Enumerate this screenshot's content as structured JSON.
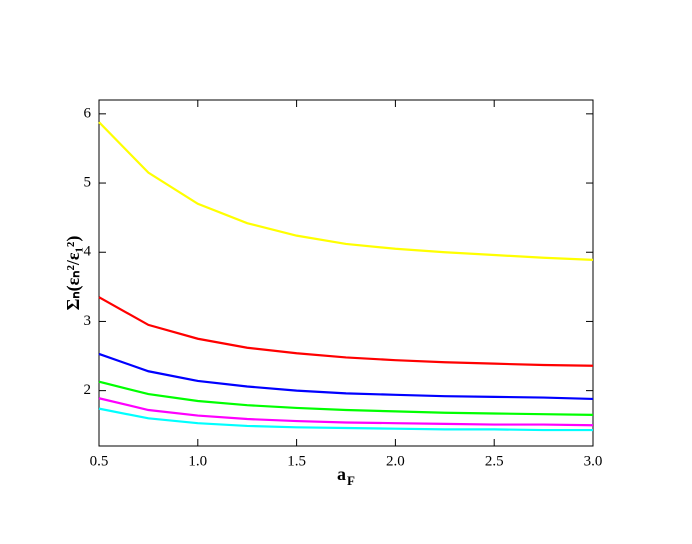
{
  "chart_data": {
    "type": "line",
    "xlabel": {
      "main": "a",
      "sub": "F"
    },
    "ylabel": "Σₙ(εₙ²/ε₁²)",
    "x": [
      0.5,
      0.75,
      1.0,
      1.25,
      1.5,
      1.75,
      2.0,
      2.25,
      2.5,
      2.75,
      3.0
    ],
    "series": [
      {
        "color": "#ffff00",
        "values": [
          5.88,
          5.15,
          4.7,
          4.42,
          4.24,
          4.12,
          4.05,
          4.0,
          3.96,
          3.92,
          3.89
        ]
      },
      {
        "color": "#ff0000",
        "values": [
          3.35,
          2.95,
          2.75,
          2.62,
          2.54,
          2.48,
          2.44,
          2.41,
          2.39,
          2.37,
          2.36
        ]
      },
      {
        "color": "#0000ff",
        "values": [
          2.53,
          2.28,
          2.14,
          2.06,
          2.0,
          1.96,
          1.94,
          1.92,
          1.91,
          1.9,
          1.88
        ]
      },
      {
        "color": "#00ff00",
        "values": [
          2.13,
          1.95,
          1.85,
          1.79,
          1.75,
          1.72,
          1.7,
          1.68,
          1.67,
          1.66,
          1.65
        ]
      },
      {
        "color": "#ff00ff",
        "values": [
          1.89,
          1.72,
          1.64,
          1.59,
          1.56,
          1.54,
          1.53,
          1.52,
          1.51,
          1.51,
          1.5
        ]
      },
      {
        "color": "#00ffff",
        "values": [
          1.74,
          1.6,
          1.53,
          1.49,
          1.47,
          1.46,
          1.45,
          1.44,
          1.44,
          1.43,
          1.43
        ]
      }
    ],
    "xlim": [
      0.5,
      3.0
    ],
    "xticks": [
      {
        "value": 0.5,
        "label": "0.5"
      },
      {
        "value": 1.0,
        "label": "1.0"
      },
      {
        "value": 1.5,
        "label": "1.5"
      },
      {
        "value": 2.0,
        "label": "2.0"
      },
      {
        "value": 2.5,
        "label": "2.5"
      },
      {
        "value": 3.0,
        "label": "3.0"
      }
    ],
    "ylim": [
      1.2,
      6.2
    ],
    "yticks": [
      2,
      3,
      4,
      5,
      6
    ],
    "grid": false
  }
}
